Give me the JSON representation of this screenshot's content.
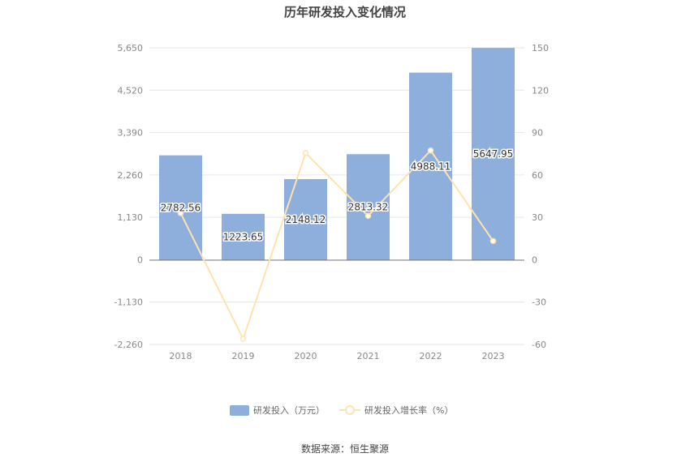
{
  "chart_data": {
    "type": "bar",
    "title": "历年研发投入变化情况",
    "categories": [
      "2018",
      "2019",
      "2020",
      "2021",
      "2022",
      "2023"
    ],
    "series": [
      {
        "name": "研发投入（万元）",
        "type": "bar",
        "axis": "left",
        "values": [
          2782.56,
          1223.65,
          2148.12,
          2813.32,
          4988.11,
          5647.95
        ],
        "labels": [
          "2782.56",
          "1223.65",
          "2148.12",
          "2813.32",
          "4988.11",
          "5647.95"
        ],
        "color": "#8eaedb"
      },
      {
        "name": "研发投入增长率（%）",
        "type": "line",
        "axis": "right",
        "values": [
          33,
          -56,
          75.5,
          31,
          77.3,
          13.2
        ],
        "color": "#fde3b0"
      }
    ],
    "y_left": {
      "range": [
        -2260,
        5650
      ],
      "ticks": [
        -2260,
        -1130,
        0,
        1130,
        2260,
        3390,
        4520,
        5650
      ],
      "tick_labels": [
        "-2,260",
        "-1,130",
        "0",
        "1,130",
        "2,260",
        "3,390",
        "4,520",
        "5,650"
      ]
    },
    "y_right": {
      "range": [
        -60,
        150
      ],
      "ticks": [
        -60,
        -30,
        0,
        30,
        60,
        90,
        120,
        150
      ],
      "tick_labels": [
        "-60",
        "-30",
        "0",
        "30",
        "60",
        "90",
        "120",
        "150"
      ]
    },
    "grid": true,
    "legend_position": "bottom-center",
    "source": "数据来源：恒生聚源"
  }
}
